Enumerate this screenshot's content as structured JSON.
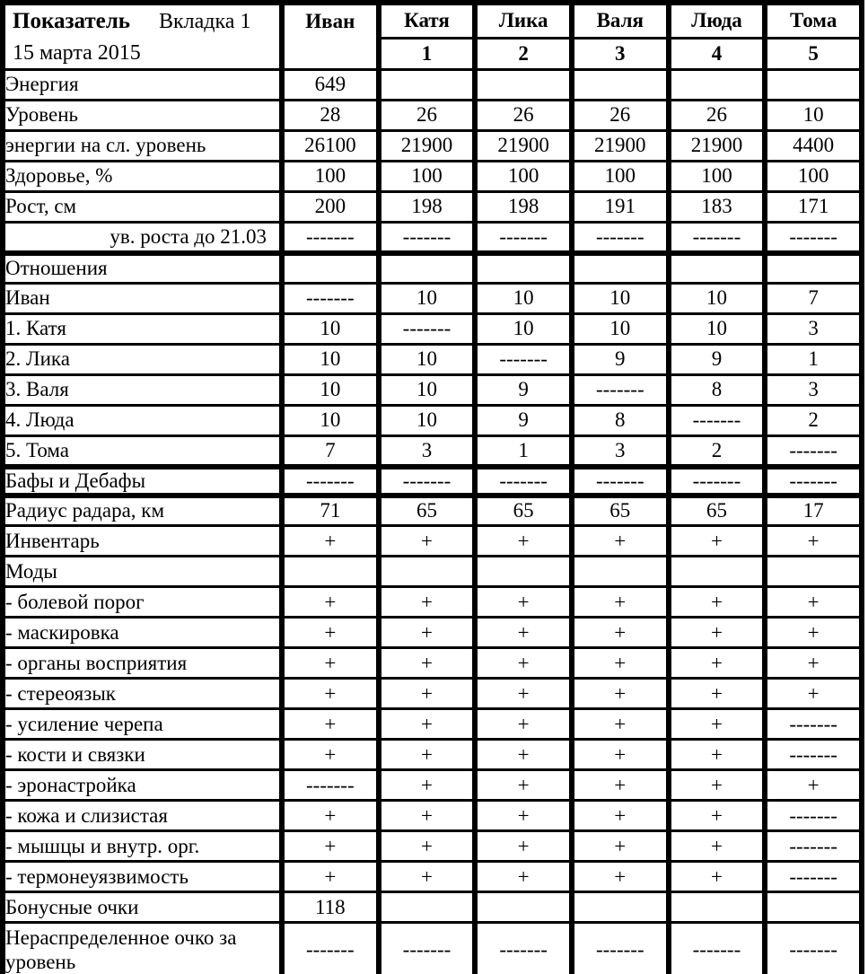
{
  "page": {
    "background": "#ffffff",
    "line_color": "#000000"
  },
  "table": {
    "header": {
      "title": "Показатель",
      "tab": "Вкладка 1",
      "date": "15 марта 2015",
      "columns": [
        {
          "name": "Иван",
          "number": ""
        },
        {
          "name": "Катя",
          "number": "1"
        },
        {
          "name": "Лика",
          "number": "2"
        },
        {
          "name": "Валя",
          "number": "3"
        },
        {
          "name": "Люда",
          "number": "4"
        },
        {
          "name": "Тома",
          "number": "5"
        }
      ]
    },
    "sections": [
      {
        "rows": [
          {
            "label": "Энергия",
            "values": [
              "649",
              "",
              "",
              "",
              "",
              ""
            ]
          },
          {
            "label": "Уровень",
            "values": [
              "28",
              "26",
              "26",
              "26",
              "26",
              "10"
            ]
          },
          {
            "label": "энергии на сл. уровень",
            "values": [
              "26100",
              "21900",
              "21900",
              "21900",
              "21900",
              "4400"
            ]
          },
          {
            "label": "Здоровье, %",
            "values": [
              "100",
              "100",
              "100",
              "100",
              "100",
              "100"
            ]
          },
          {
            "label": "Рост, см",
            "values": [
              "200",
              "198",
              "198",
              "191",
              "183",
              "171"
            ]
          },
          {
            "label": "ув. роста до 21.03",
            "align": "right",
            "values": [
              "-------",
              "-------",
              "-------",
              "-------",
              "-------",
              "-------"
            ]
          }
        ]
      },
      {
        "rows": [
          {
            "label": "Отношения",
            "values": [
              "",
              "",
              "",
              "",
              "",
              ""
            ]
          },
          {
            "label": "Иван",
            "values": [
              "-------",
              "10",
              "10",
              "10",
              "10",
              "7"
            ]
          },
          {
            "label": "1. Катя",
            "values": [
              "10",
              "-------",
              "10",
              "10",
              "10",
              "3"
            ]
          },
          {
            "label": "2. Лика",
            "values": [
              "10",
              "10",
              "-------",
              "9",
              "9",
              "1"
            ]
          },
          {
            "label": "3. Валя",
            "values": [
              "10",
              "10",
              "9",
              "-------",
              "8",
              "3"
            ]
          },
          {
            "label": "4. Люда",
            "values": [
              "10",
              "10",
              "9",
              "8",
              "-------",
              "2"
            ]
          },
          {
            "label": "5. Тома",
            "values": [
              "7",
              "3",
              "1",
              "3",
              "2",
              "-------"
            ]
          }
        ]
      },
      {
        "rows": [
          {
            "label": "Бафы и Дебафы",
            "h": "short",
            "values": [
              "-------",
              "-------",
              "-------",
              "-------",
              "-------",
              "-------"
            ]
          }
        ]
      },
      {
        "rows": [
          {
            "label": "Радиус радара, км",
            "values": [
              "71",
              "65",
              "65",
              "65",
              "65",
              "17"
            ]
          },
          {
            "label": "Инвентарь",
            "values": [
              "+",
              "+",
              "+",
              "+",
              "+",
              "+"
            ]
          },
          {
            "label": "Моды",
            "values": [
              "",
              "",
              "",
              "",
              "",
              ""
            ]
          },
          {
            "label": "- болевой порог",
            "values": [
              "+",
              "+",
              "+",
              "+",
              "+",
              "+"
            ]
          },
          {
            "label": "- маскировка",
            "values": [
              "+",
              "+",
              "+",
              "+",
              "+",
              "+"
            ]
          },
          {
            "label": "- органы восприятия",
            "values": [
              "+",
              "+",
              "+",
              "+",
              "+",
              "+"
            ]
          },
          {
            "label": "- стереоязык",
            "values": [
              "+",
              "+",
              "+",
              "+",
              "+",
              "+"
            ]
          },
          {
            "label": "- усиление черепа",
            "values": [
              "+",
              "+",
              "+",
              "+",
              "+",
              "-------"
            ]
          },
          {
            "label": "- кости и связки",
            "values": [
              "+",
              "+",
              "+",
              "+",
              "+",
              "-------"
            ]
          },
          {
            "label": "- эронастройка",
            "values": [
              "-------",
              "+",
              "+",
              "+",
              "+",
              "+"
            ]
          },
          {
            "label": "- кожа и слизистая",
            "values": [
              "+",
              "+",
              "+",
              "+",
              "+",
              "-------"
            ]
          },
          {
            "label": "- мышцы и внутр. орг.",
            "values": [
              "+",
              "+",
              "+",
              "+",
              "+",
              "-------"
            ]
          },
          {
            "label": "- термонеуязвимость",
            "values": [
              "+",
              "+",
              "+",
              "+",
              "+",
              "-------"
            ]
          },
          {
            "label": "Бонусные очки",
            "values": [
              "118",
              "",
              "",
              "",
              "",
              ""
            ]
          },
          {
            "label": "Нераспределенное очко за уровень",
            "h": "tall",
            "wrap": true,
            "values": [
              "-------",
              "-------",
              "-------",
              "-------",
              "-------",
              "-------"
            ]
          }
        ]
      }
    ]
  }
}
